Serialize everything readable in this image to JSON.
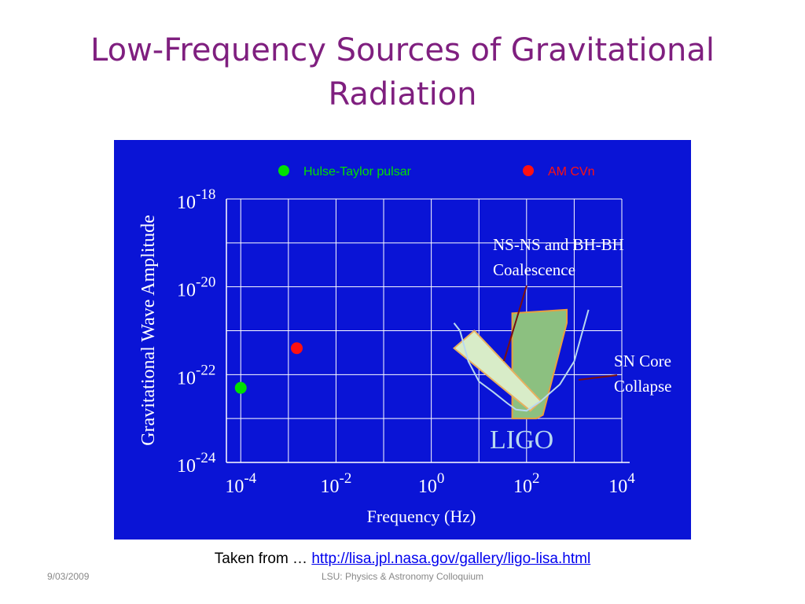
{
  "slide": {
    "title_line1": "Low-Frequency Sources of Gravitational",
    "title_line2": "Radiation",
    "source_prefix": "Taken from … ",
    "source_link": "http://lisa.jpl.nasa.gov/gallery/ligo-lisa.html",
    "footer_date": "9/03/2009",
    "footer_center": "LSU:  Physics & Astronomy Colloquium"
  },
  "colors": {
    "title": "#7f1f7f",
    "panel_bg": "#0a14d6",
    "grid": "#ffffff",
    "hulse_taylor": "#00e000",
    "am_cvn": "#ff1010",
    "ligo_curve": "#b8d8f0",
    "ns_ns_band": "#d8ecc8",
    "sn_band": "#8cc080",
    "leader": "#7a1010"
  },
  "chart_data": {
    "type": "scatter",
    "xlabel": "Frequency (Hz)",
    "ylabel": "Gravitational Wave Amplitude",
    "x_scale": "log",
    "y_scale": "log",
    "xlim": [
      5e-05,
      10000
    ],
    "ylim": [
      1e-24,
      1e-18
    ],
    "x_ticks": [
      {
        "base": "10",
        "exp": "-4",
        "value": 0.0001
      },
      {
        "base": "10",
        "exp": "-2",
        "value": 0.01
      },
      {
        "base": "10",
        "exp": "0",
        "value": 1
      },
      {
        "base": "10",
        "exp": "2",
        "value": 100
      },
      {
        "base": "10",
        "exp": "4",
        "value": 10000
      }
    ],
    "y_ticks": [
      {
        "base": "10",
        "exp": "-18",
        "value": 1e-18
      },
      {
        "base": "10",
        "exp": "-20",
        "value": 1e-20
      },
      {
        "base": "10",
        "exp": "-22",
        "value": 1e-22
      },
      {
        "base": "10",
        "exp": "-24",
        "value": 1e-24
      }
    ],
    "grid": true,
    "legend": {
      "placement": "top",
      "entries": [
        {
          "label": "Hulse-Taylor pulsar",
          "color": "#00e000"
        },
        {
          "label": "AM CVn",
          "color": "#ff1010"
        }
      ]
    },
    "points": [
      {
        "name": "Hulse-Taylor pulsar",
        "x": 0.0001,
        "y": 5e-23,
        "color": "#00e000"
      },
      {
        "name": "AM CVn",
        "x": 0.0015,
        "y": 4e-22,
        "color": "#ff1010"
      }
    ],
    "ligo_curve": {
      "label": "LIGO",
      "x": [
        3,
        4,
        6,
        10,
        20,
        40,
        60,
        100,
        200,
        500,
        1000,
        2000
      ],
      "y": [
        1.5e-21,
        1e-21,
        2e-22,
        7e-23,
        4e-23,
        2.2e-23,
        1.6e-23,
        1.5e-23,
        2.5e-23,
        6e-23,
        2e-22,
        3e-21
      ]
    },
    "regions": [
      {
        "name": "ns-ns-bh-bh-coalescence",
        "label_lines": [
          "NS-NS and BH-BH",
          "Coalescence"
        ],
        "x": [
          3,
          8,
          200,
          120
        ],
        "y": [
          4e-22,
          1e-21,
          2.5e-23,
          1.5e-23
        ]
      },
      {
        "name": "sn-core-collapse",
        "label_lines": [
          "SN Core",
          "Collapse"
        ],
        "x": [
          50,
          50,
          700,
          700,
          220,
          160
        ],
        "y": [
          1e-23,
          2.5e-21,
          3e-21,
          1.5e-21,
          1.2e-23,
          1e-23
        ]
      }
    ]
  }
}
